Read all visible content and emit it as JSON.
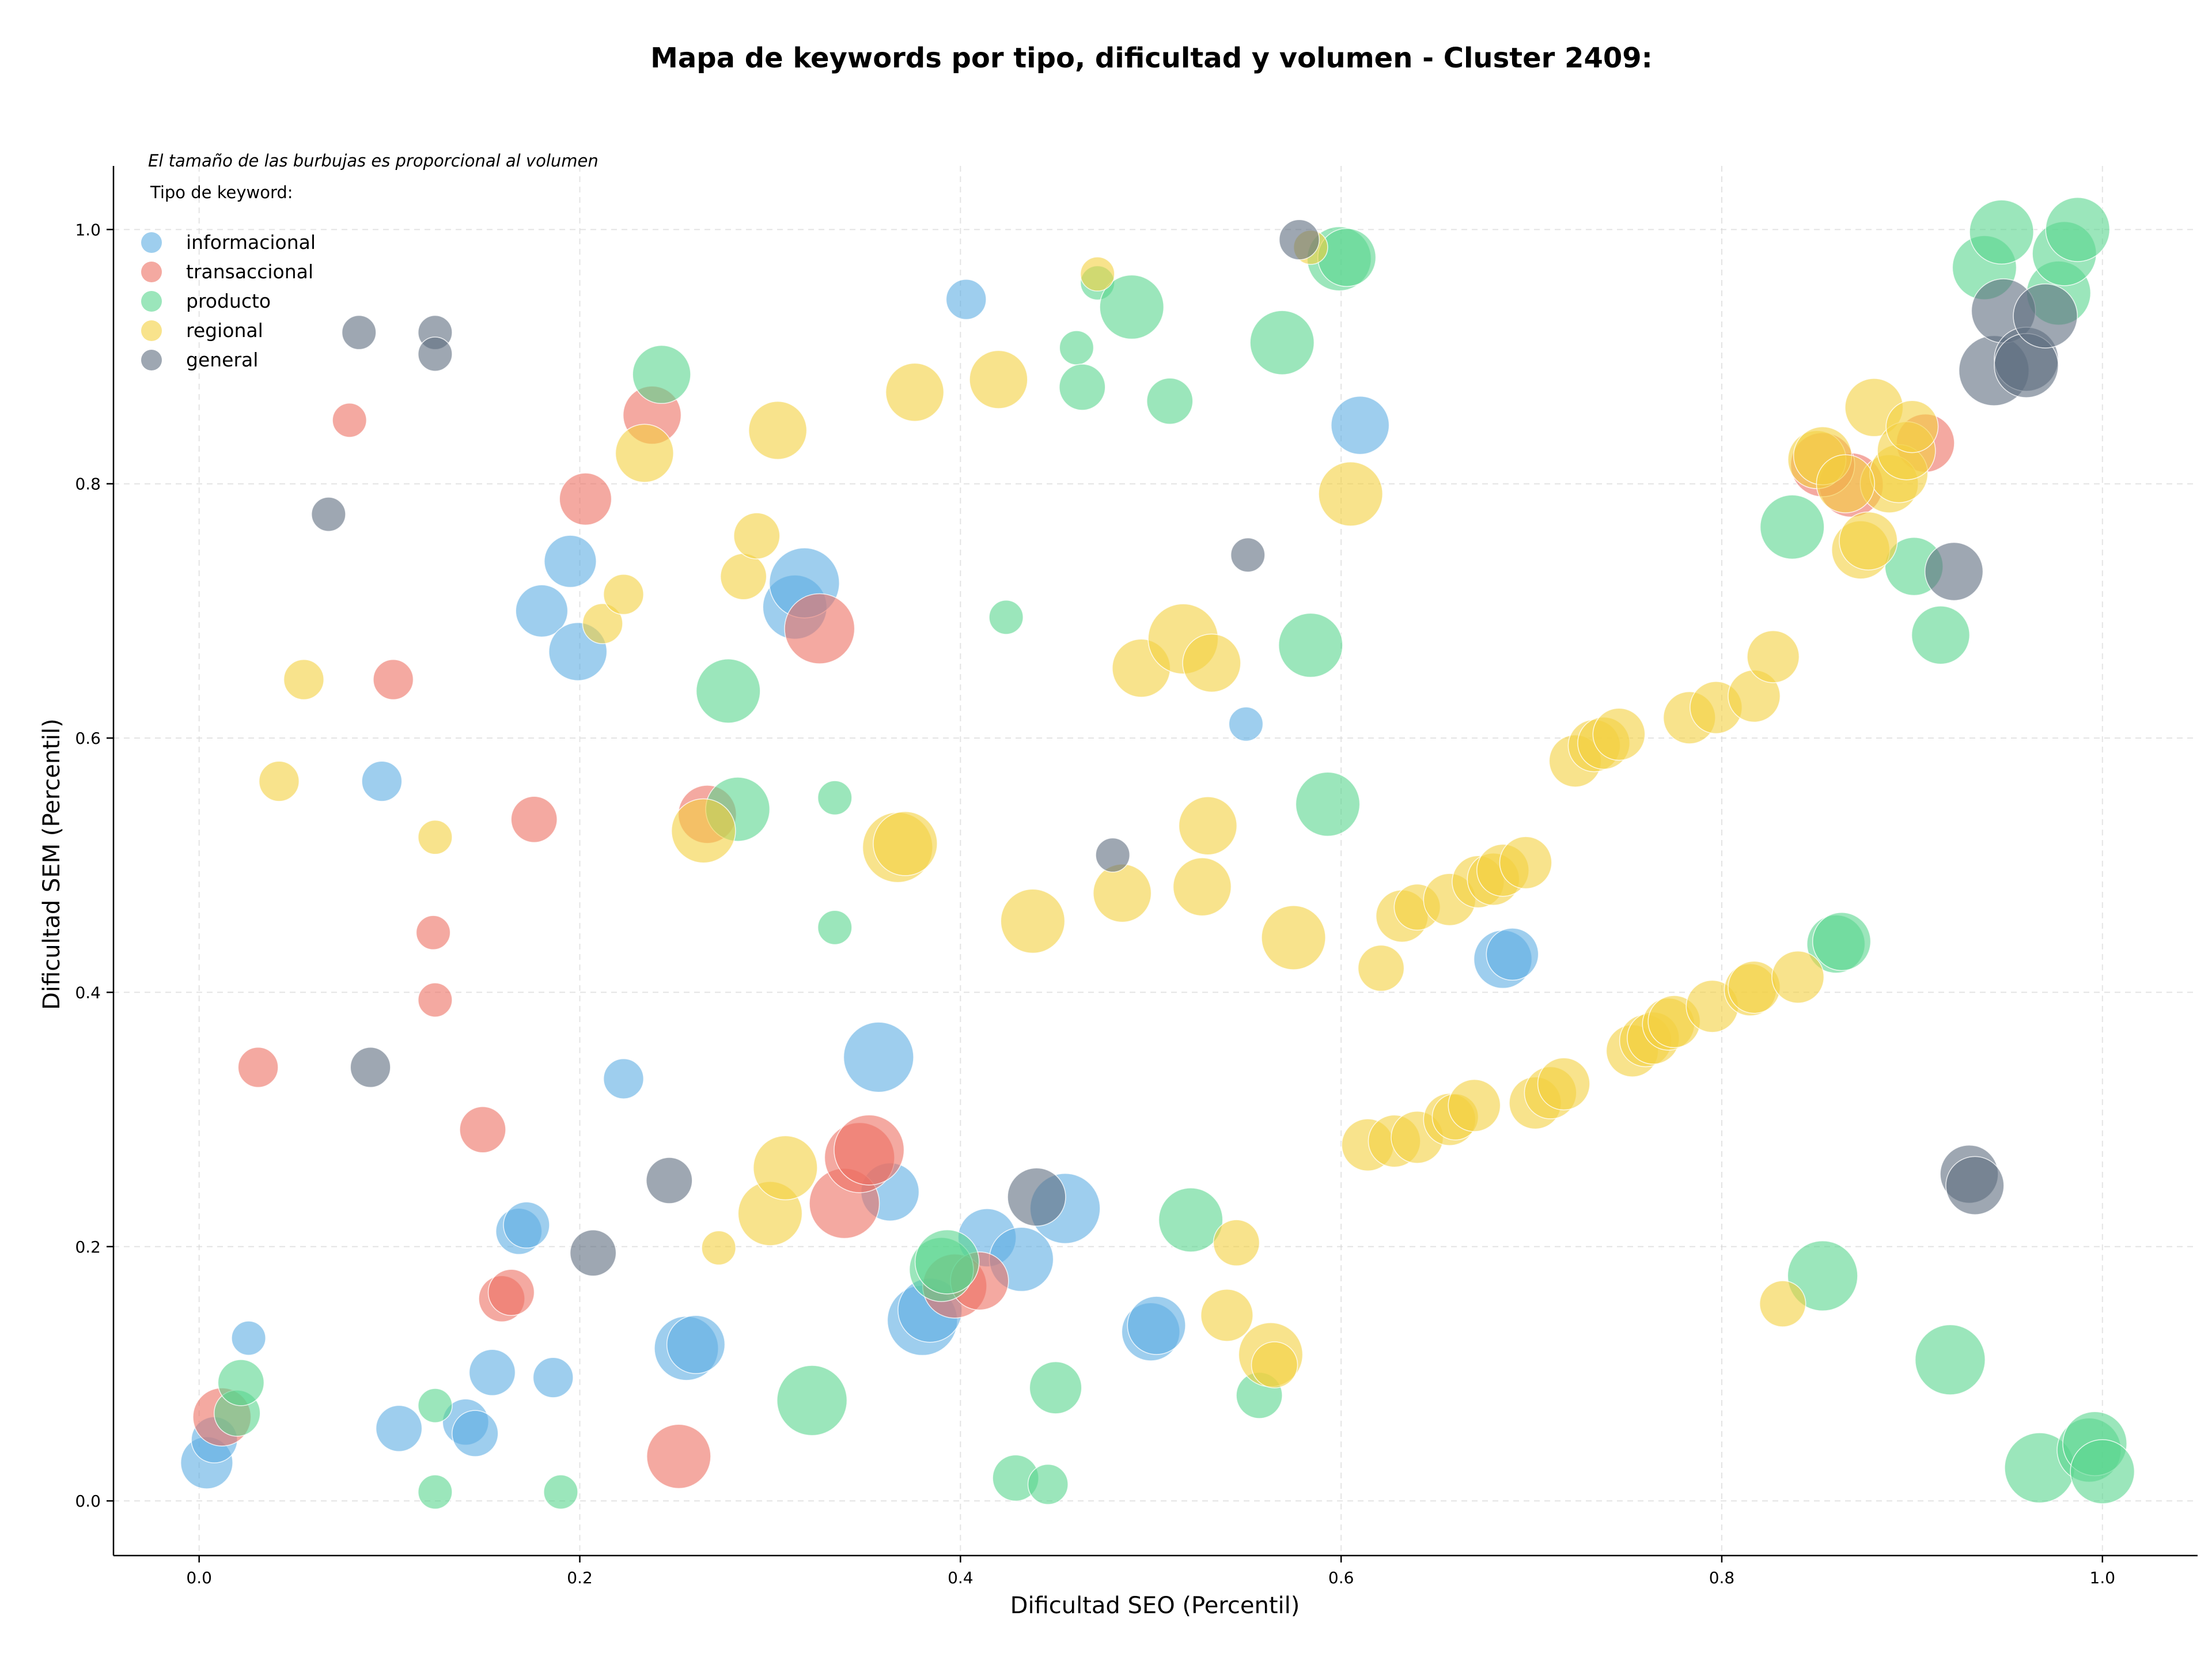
{
  "chart_data": {
    "type": "scatter",
    "title": "Mapa de keywords por tipo, dificultad y volumen - Cluster 2409:",
    "xlabel": "Dificultad SEO (Percentil)",
    "ylabel": "Dificultad SEM (Percentil)",
    "note": "El tamaño de las burbujas es proporcional al volumen",
    "legend_title": "Tipo de keyword:",
    "legend_position": "top-left",
    "grid": true,
    "xlim": [
      -0.045,
      1.05
    ],
    "ylim": [
      -0.043,
      1.05
    ],
    "xticks": [
      "0.0",
      "0.2",
      "0.4",
      "0.6",
      "0.8",
      "1.0"
    ],
    "yticks": [
      "0.0",
      "0.2",
      "0.4",
      "0.6",
      "0.8",
      "1.0"
    ],
    "series": [
      {
        "name": "informacional",
        "color": "#5DADE2",
        "points": [
          [
            0.004,
            0.03,
            6
          ],
          [
            0.008,
            0.048,
            5
          ],
          [
            0.026,
            0.128,
            3
          ],
          [
            0.096,
            0.566,
            4
          ],
          [
            0.105,
            0.057,
            5
          ],
          [
            0.14,
            0.062,
            5
          ],
          [
            0.145,
            0.053,
            5
          ],
          [
            0.154,
            0.101,
            5
          ],
          [
            0.168,
            0.212,
            5
          ],
          [
            0.172,
            0.217,
            5
          ],
          [
            0.18,
            0.7,
            6
          ],
          [
            0.186,
            0.097,
            4
          ],
          [
            0.195,
            0.739,
            6
          ],
          [
            0.199,
            0.668,
            7
          ],
          [
            0.223,
            0.332,
            4
          ],
          [
            0.256,
            0.12,
            8
          ],
          [
            0.261,
            0.123,
            7
          ],
          [
            0.313,
            0.703,
            8
          ],
          [
            0.318,
            0.722,
            9
          ],
          [
            0.357,
            0.349,
            9
          ],
          [
            0.363,
            0.243,
            7
          ],
          [
            0.38,
            0.142,
            9
          ],
          [
            0.384,
            0.15,
            8
          ],
          [
            0.403,
            0.945,
            4
          ],
          [
            0.414,
            0.207,
            7
          ],
          [
            0.432,
            0.19,
            8
          ],
          [
            0.455,
            0.23,
            9
          ],
          [
            0.5,
            0.133,
            7
          ],
          [
            0.503,
            0.138,
            7
          ],
          [
            0.55,
            0.611,
            3
          ],
          [
            0.61,
            0.846,
            7
          ],
          [
            0.685,
            0.426,
            7
          ],
          [
            0.69,
            0.43,
            6
          ]
        ]
      },
      {
        "name": "transaccional",
        "color": "#EC7063",
        "points": [
          [
            0.012,
            0.066,
            7
          ],
          [
            0.031,
            0.341,
            4
          ],
          [
            0.079,
            0.85,
            3
          ],
          [
            0.102,
            0.646,
            4
          ],
          [
            0.123,
            0.447,
            3
          ],
          [
            0.124,
            0.394,
            3
          ],
          [
            0.149,
            0.292,
            5
          ],
          [
            0.159,
            0.159,
            5
          ],
          [
            0.164,
            0.164,
            5
          ],
          [
            0.176,
            0.536,
            5
          ],
          [
            0.203,
            0.788,
            6
          ],
          [
            0.238,
            0.854,
            7
          ],
          [
            0.252,
            0.035,
            8
          ],
          [
            0.267,
            0.54,
            7
          ],
          [
            0.326,
            0.686,
            9
          ],
          [
            0.339,
            0.234,
            9
          ],
          [
            0.347,
            0.27,
            9
          ],
          [
            0.352,
            0.276,
            9
          ],
          [
            0.397,
            0.169,
            8
          ],
          [
            0.41,
            0.173,
            7
          ],
          [
            0.868,
            0.799,
            8
          ],
          [
            0.853,
            0.815,
            8
          ],
          [
            0.907,
            0.832,
            7
          ]
        ]
      },
      {
        "name": "producto",
        "color": "#58D68D",
        "points": [
          [
            0.02,
            0.069,
            5
          ],
          [
            0.022,
            0.093,
            5
          ],
          [
            0.124,
            0.075,
            3
          ],
          [
            0.124,
            0.007,
            3
          ],
          [
            0.19,
            0.007,
            3
          ],
          [
            0.243,
            0.886,
            7
          ],
          [
            0.278,
            0.637,
            8
          ],
          [
            0.283,
            0.544,
            8
          ],
          [
            0.334,
            0.553,
            3
          ],
          [
            0.334,
            0.451,
            3
          ],
          [
            0.322,
            0.079,
            9
          ],
          [
            0.39,
            0.182,
            8
          ],
          [
            0.393,
            0.188,
            8
          ],
          [
            0.424,
            0.695,
            3
          ],
          [
            0.429,
            0.018,
            5
          ],
          [
            0.446,
            0.013,
            4
          ],
          [
            0.45,
            0.089,
            6
          ],
          [
            0.461,
            0.907,
            3
          ],
          [
            0.464,
            0.876,
            5
          ],
          [
            0.472,
            0.958,
            3
          ],
          [
            0.49,
            0.939,
            8
          ],
          [
            0.51,
            0.865,
            5
          ],
          [
            0.521,
            0.221,
            8
          ],
          [
            0.557,
            0.083,
            5
          ],
          [
            0.569,
            0.911,
            8
          ],
          [
            0.584,
            0.673,
            8
          ],
          [
            0.593,
            0.548,
            8
          ],
          [
            0.599,
            0.977,
            8
          ],
          [
            0.603,
            0.978,
            7
          ],
          [
            0.837,
            0.766,
            8
          ],
          [
            0.853,
            0.177,
            9
          ],
          [
            0.86,
            0.438,
            7
          ],
          [
            0.863,
            0.44,
            7
          ],
          [
            0.901,
            0.735,
            7
          ],
          [
            0.915,
            0.681,
            7
          ],
          [
            0.92,
            0.111,
            9
          ],
          [
            0.938,
            0.97,
            8
          ],
          [
            0.947,
            0.998,
            8
          ],
          [
            0.967,
            0.026,
            9
          ],
          [
            0.977,
            0.95,
            8
          ],
          [
            0.98,
            0.981,
            8
          ],
          [
            0.987,
            1.0,
            8
          ],
          [
            0.993,
            0.04,
            8
          ],
          [
            0.996,
            0.045,
            8
          ],
          [
            1.0,
            0.023,
            8
          ]
        ]
      },
      {
        "name": "regional",
        "color": "#F4D03F",
        "points": [
          [
            0.042,
            0.566,
            4
          ],
          [
            0.055,
            0.646,
            4
          ],
          [
            0.124,
            0.522,
            3
          ],
          [
            0.212,
            0.69,
            4
          ],
          [
            0.223,
            0.713,
            4
          ],
          [
            0.234,
            0.824,
            7
          ],
          [
            0.265,
            0.527,
            8
          ],
          [
            0.273,
            0.199,
            3
          ],
          [
            0.286,
            0.727,
            5
          ],
          [
            0.293,
            0.759,
            5
          ],
          [
            0.3,
            0.226,
            8
          ],
          [
            0.304,
            0.842,
            7
          ],
          [
            0.308,
            0.262,
            8
          ],
          [
            0.367,
            0.514,
            9
          ],
          [
            0.371,
            0.517,
            8
          ],
          [
            0.376,
            0.872,
            7
          ],
          [
            0.42,
            0.882,
            7
          ],
          [
            0.438,
            0.456,
            8
          ],
          [
            0.472,
            0.965,
            3
          ],
          [
            0.485,
            0.478,
            7
          ],
          [
            0.495,
            0.655,
            7
          ],
          [
            0.517,
            0.678,
            9
          ],
          [
            0.527,
            0.483,
            7
          ],
          [
            0.53,
            0.531,
            7
          ],
          [
            0.532,
            0.659,
            7
          ],
          [
            0.54,
            0.146,
            6
          ],
          [
            0.545,
            0.203,
            5
          ],
          [
            0.563,
            0.115,
            8
          ],
          [
            0.565,
            0.107,
            5
          ],
          [
            0.575,
            0.443,
            8
          ],
          [
            0.584,
            0.986,
            3
          ],
          [
            0.605,
            0.792,
            8
          ],
          [
            0.614,
            0.28,
            6
          ],
          [
            0.621,
            0.419,
            5
          ],
          [
            0.628,
            0.283,
            6
          ],
          [
            0.632,
            0.46,
            6
          ],
          [
            0.64,
            0.286,
            6
          ],
          [
            0.64,
            0.467,
            5
          ],
          [
            0.657,
            0.473,
            6
          ],
          [
            0.657,
            0.3,
            6
          ],
          [
            0.66,
            0.302,
            5
          ],
          [
            0.67,
            0.311,
            6
          ],
          [
            0.672,
            0.487,
            6
          ],
          [
            0.68,
            0.489,
            6
          ],
          [
            0.685,
            0.496,
            6
          ],
          [
            0.697,
            0.502,
            6
          ],
          [
            0.702,
            0.313,
            6
          ],
          [
            0.71,
            0.321,
            6
          ],
          [
            0.717,
            0.328,
            6
          ],
          [
            0.723,
            0.582,
            6
          ],
          [
            0.733,
            0.594,
            6
          ],
          [
            0.738,
            0.596,
            6
          ],
          [
            0.746,
            0.603,
            6
          ],
          [
            0.753,
            0.354,
            6
          ],
          [
            0.76,
            0.362,
            6
          ],
          [
            0.764,
            0.364,
            6
          ],
          [
            0.772,
            0.375,
            6
          ],
          [
            0.775,
            0.377,
            6
          ],
          [
            0.783,
            0.616,
            6
          ],
          [
            0.795,
            0.389,
            6
          ],
          [
            0.797,
            0.624,
            6
          ],
          [
            0.815,
            0.402,
            6
          ],
          [
            0.817,
            0.404,
            6
          ],
          [
            0.817,
            0.633,
            6
          ],
          [
            0.827,
            0.664,
            6
          ],
          [
            0.832,
            0.155,
            5
          ],
          [
            0.84,
            0.412,
            6
          ],
          [
            0.85,
            0.819,
            7
          ],
          [
            0.853,
            0.822,
            7
          ],
          [
            0.873,
            0.748,
            7
          ],
          [
            0.877,
            0.755,
            7
          ],
          [
            0.88,
            0.86,
            7
          ],
          [
            0.888,
            0.8,
            7
          ],
          [
            0.893,
            0.808,
            7
          ],
          [
            0.897,
            0.826,
            7
          ],
          [
            0.9,
            0.845,
            6
          ],
          [
            0.865,
            0.8,
            7
          ]
        ]
      },
      {
        "name": "general",
        "color": "#5D6D7E",
        "points": [
          [
            0.068,
            0.776,
            3
          ],
          [
            0.084,
            0.919,
            3
          ],
          [
            0.09,
            0.341,
            4
          ],
          [
            0.124,
            0.919,
            3
          ],
          [
            0.124,
            0.902,
            3
          ],
          [
            0.207,
            0.195,
            5
          ],
          [
            0.247,
            0.252,
            5
          ],
          [
            0.44,
            0.239,
            7
          ],
          [
            0.48,
            0.508,
            3
          ],
          [
            0.551,
            0.744,
            3
          ],
          [
            0.578,
            0.992,
            4
          ],
          [
            0.922,
            0.731,
            7
          ],
          [
            0.93,
            0.257,
            7
          ],
          [
            0.933,
            0.248,
            7
          ],
          [
            0.943,
            0.889,
            9
          ],
          [
            0.948,
            0.936,
            8
          ],
          [
            0.96,
            0.898,
            8
          ],
          [
            0.96,
            0.893,
            8
          ],
          [
            0.97,
            0.932,
            8
          ]
        ]
      }
    ]
  }
}
